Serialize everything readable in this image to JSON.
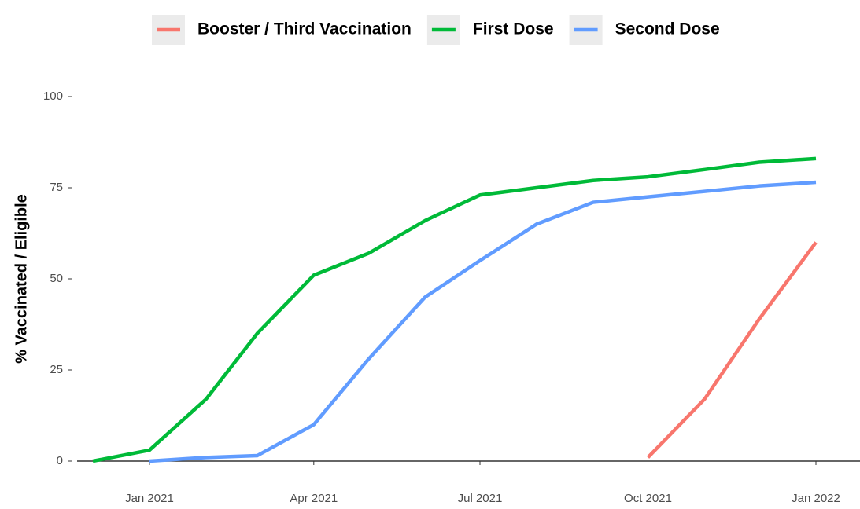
{
  "chart_data": {
    "type": "line",
    "ylabel": "% Vaccinated / Eligible",
    "x": [
      "2020-12",
      "2021-01",
      "2021-02",
      "2021-03",
      "2021-04",
      "2021-05",
      "2021-06",
      "2021-07",
      "2021-08",
      "2021-09",
      "2021-10",
      "2021-11",
      "2021-12",
      "2022-01"
    ],
    "series": [
      {
        "name": "Booster / Third Vaccination",
        "color": "#F8766D",
        "values": [
          null,
          null,
          null,
          null,
          null,
          null,
          null,
          null,
          null,
          null,
          1,
          17,
          39,
          60
        ]
      },
      {
        "name": "First Dose",
        "color": "#00BA38",
        "values": [
          0,
          3,
          17,
          35,
          51,
          57,
          66,
          73,
          75,
          77,
          78,
          80,
          82,
          83
        ]
      },
      {
        "name": "Second Dose",
        "color": "#619CFF",
        "values": [
          null,
          0,
          1,
          1.5,
          10,
          28,
          45,
          55,
          65,
          71,
          72.5,
          74,
          75.5,
          76.5
        ]
      }
    ],
    "xlim": [
      "2020-12",
      "2022-01"
    ],
    "xticks": [
      {
        "value": "2021-01",
        "label": "Jan 2021"
      },
      {
        "value": "2021-04",
        "label": "Apr 2021"
      },
      {
        "value": "2021-07",
        "label": "Jul 2021"
      },
      {
        "value": "2021-10",
        "label": "Oct 2021"
      },
      {
        "value": "2022-01",
        "label": "Jan 2022"
      }
    ],
    "ylim": [
      0,
      100
    ],
    "yticks": [
      0,
      25,
      50,
      75,
      100
    ],
    "legend": "top"
  }
}
